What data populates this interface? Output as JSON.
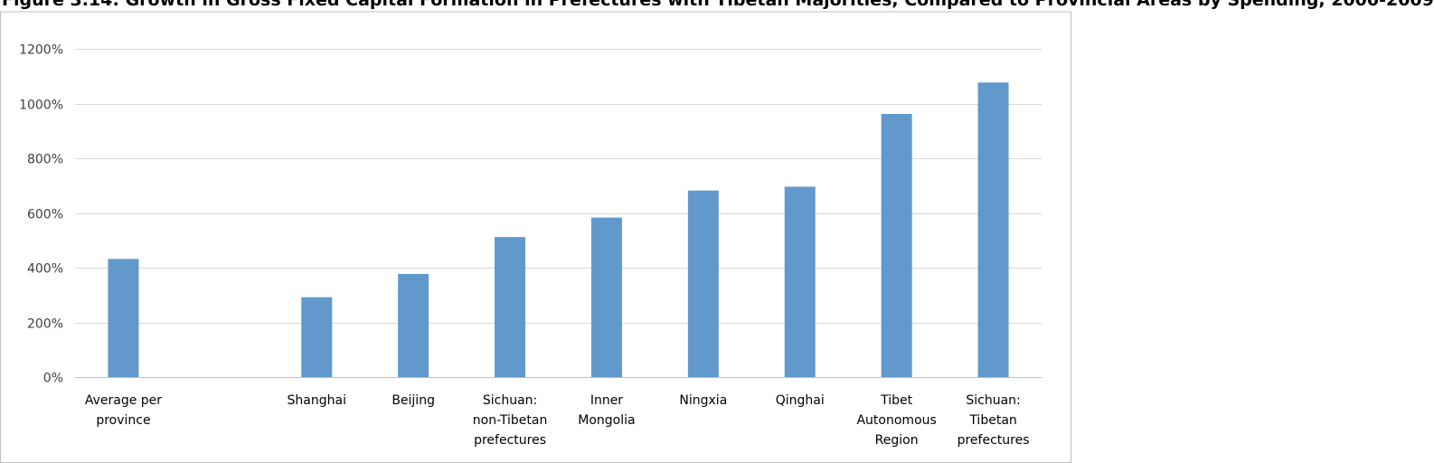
{
  "chart_data": {
    "type": "bar",
    "title": "Figure 3.14: Growth in Gross Fixed Capital Formation in Prefectures with Tibetan Majorities, Compared to Provincial Areas by Spending, 2000-2009",
    "categories": [
      [
        "Average per",
        "province"
      ],
      [
        "",
        ""
      ],
      [
        "Shanghai"
      ],
      [
        "Beijing"
      ],
      [
        "Sichuan:",
        "non-Tibetan",
        "prefectures"
      ],
      [
        "Inner",
        "Mongolia"
      ],
      [
        "Ningxia"
      ],
      [
        "Qinghai"
      ],
      [
        "Tibet",
        "Autonomous",
        "Region"
      ],
      [
        "Sichuan:",
        "Tibetan",
        "prefectures"
      ]
    ],
    "values": [
      432,
      null,
      292,
      377,
      512,
      583,
      682,
      696,
      962,
      1077
    ],
    "ylim": [
      0,
      1200
    ],
    "yticks": [
      0,
      200,
      400,
      600,
      800,
      1000,
      1200
    ],
    "ytick_labels": [
      "0%",
      "200%",
      "400%",
      "600%",
      "800%",
      "1000%",
      "1200%"
    ],
    "xlabel": "",
    "ylabel": "",
    "grid": true,
    "bar_color": "#6199cc",
    "grid_color": "#d9d9d9",
    "axis_color": "#bfbfbf"
  }
}
